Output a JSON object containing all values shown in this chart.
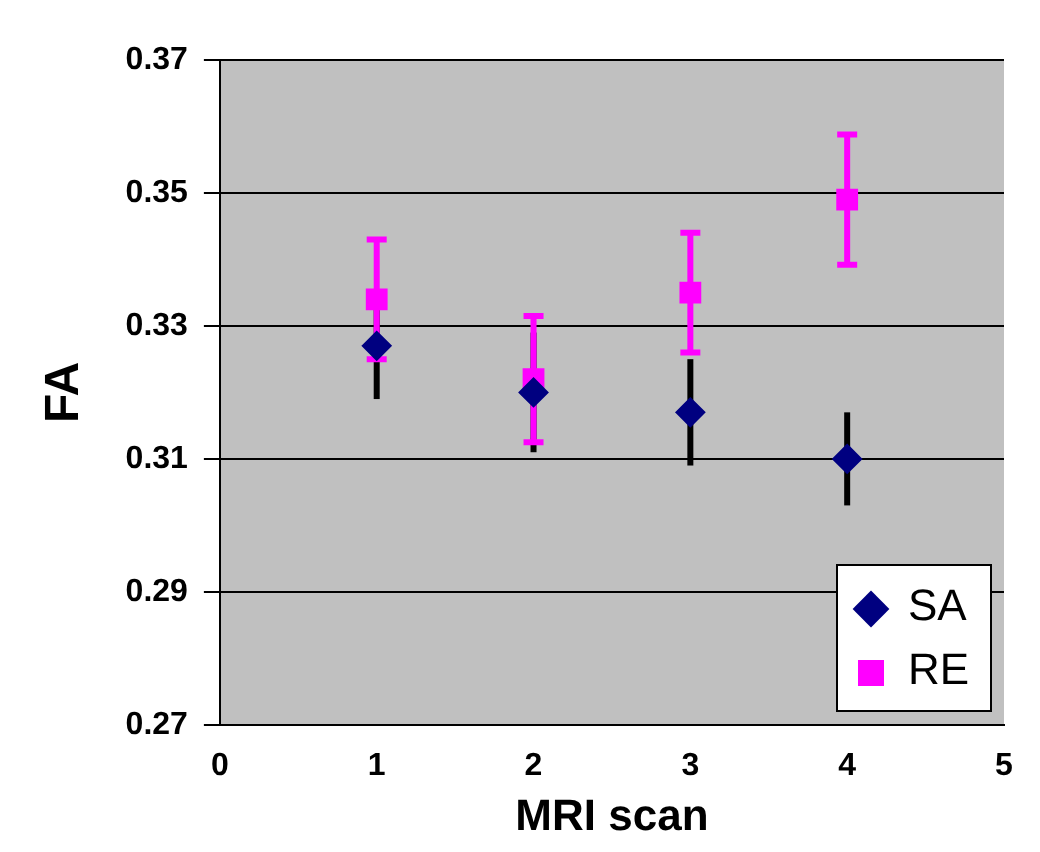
{
  "chart_data": {
    "type": "scatter",
    "xlabel": "MRI scan",
    "ylabel": "FA",
    "xlim": [
      0,
      5
    ],
    "xticks": [
      0,
      1,
      2,
      3,
      4,
      5
    ],
    "ylim": [
      0.27,
      0.37
    ],
    "yticks": [
      0.27,
      0.29,
      0.31,
      0.33,
      0.35,
      0.37
    ],
    "grid": "y",
    "legend": "bottom right",
    "series": [
      {
        "name": "SA",
        "color": "#000080",
        "marker": "diamond",
        "x": [
          1,
          2,
          3,
          4
        ],
        "values": [
          0.327,
          0.32,
          0.317,
          0.31
        ],
        "errors": [
          0.008,
          0.009,
          0.008,
          0.007
        ]
      },
      {
        "name": "RE",
        "color": "#ff00ff",
        "marker": "square",
        "x": [
          1,
          2,
          3,
          4
        ],
        "values": [
          0.334,
          0.322,
          0.335,
          0.349
        ],
        "errors": [
          0.009,
          0.0095,
          0.009,
          0.0098
        ]
      }
    ]
  }
}
